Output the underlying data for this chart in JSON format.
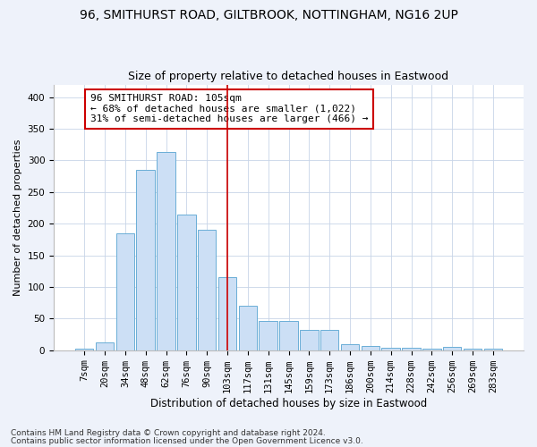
{
  "title1": "96, SMITHURST ROAD, GILTBROOK, NOTTINGHAM, NG16 2UP",
  "title2": "Size of property relative to detached houses in Eastwood",
  "xlabel": "Distribution of detached houses by size in Eastwood",
  "ylabel": "Number of detached properties",
  "categories": [
    "7sqm",
    "20sqm",
    "34sqm",
    "48sqm",
    "62sqm",
    "76sqm",
    "90sqm",
    "103sqm",
    "117sqm",
    "131sqm",
    "145sqm",
    "159sqm",
    "173sqm",
    "186sqm",
    "200sqm",
    "214sqm",
    "228sqm",
    "242sqm",
    "256sqm",
    "269sqm",
    "283sqm"
  ],
  "values": [
    2,
    13,
    185,
    285,
    313,
    215,
    190,
    115,
    70,
    46,
    46,
    32,
    32,
    9,
    6,
    4,
    4,
    2,
    5,
    2,
    3
  ],
  "bar_color": "#ccdff5",
  "bar_edge_color": "#6aaed6",
  "vline_color": "#cc0000",
  "annotation_text": "96 SMITHURST ROAD: 105sqm\n← 68% of detached houses are smaller (1,022)\n31% of semi-detached houses are larger (466) →",
  "annotation_box_color": "#ffffff",
  "annotation_box_edge_color": "#cc0000",
  "footnote1": "Contains HM Land Registry data © Crown copyright and database right 2024.",
  "footnote2": "Contains public sector information licensed under the Open Government Licence v3.0.",
  "ylim": [
    0,
    420
  ],
  "yticks": [
    0,
    50,
    100,
    150,
    200,
    250,
    300,
    350,
    400
  ],
  "bg_color": "#eef2fa",
  "plot_bg_color": "#ffffff",
  "grid_color": "#c8d4e8",
  "title1_fontsize": 10,
  "title2_fontsize": 9,
  "xlabel_fontsize": 8.5,
  "ylabel_fontsize": 8,
  "tick_fontsize": 7.5,
  "annot_fontsize": 8,
  "footnote_fontsize": 6.5
}
